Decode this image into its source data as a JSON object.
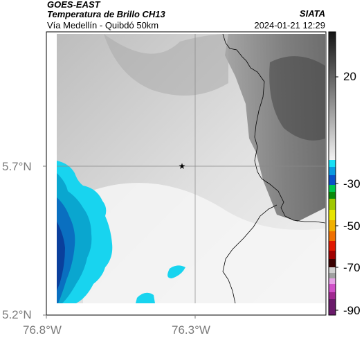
{
  "header": {
    "satellite": "GOES-EAST",
    "product": "Temperatura de Brillo CH13",
    "region": "Vía Medellín - Quibdó 50km",
    "org": "SIATA",
    "datetime": "2024-01-21 12:29"
  },
  "axes": {
    "y_ticks": [
      "5.7°N",
      "5.2°N"
    ],
    "x_ticks": [
      "76.8°W",
      "76.3°W"
    ]
  },
  "colorbar": {
    "labels": [
      "20",
      "-30",
      "-50",
      "-70",
      "-90"
    ]
  },
  "colors": {
    "cold_cloud_cyan": "#18d4ef",
    "cold_cloud_blue": "#0a57b9",
    "warm_gray": "#8a8a8a",
    "cloud_white": "#f4f4f4"
  }
}
